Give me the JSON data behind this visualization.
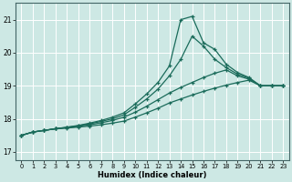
{
  "xlabel": "Humidex (Indice chaleur)",
  "background_color": "#cde8e4",
  "grid_color": "#ffffff",
  "line_color": "#1a6b5a",
  "xlim": [
    -0.5,
    23.5
  ],
  "ylim": [
    16.75,
    21.5
  ],
  "yticks": [
    17,
    18,
    19,
    20,
    21
  ],
  "xticks": [
    0,
    1,
    2,
    3,
    4,
    5,
    6,
    7,
    8,
    9,
    10,
    11,
    12,
    13,
    14,
    15,
    16,
    17,
    18,
    19,
    20,
    21,
    22,
    23
  ],
  "lines": [
    {
      "x": [
        0,
        1,
        2,
        3,
        4,
        5,
        6,
        7,
        8,
        9,
        10,
        11,
        12,
        13,
        14,
        15,
        16,
        17,
        18,
        19,
        20,
        21,
        22,
        23
      ],
      "y": [
        17.5,
        17.6,
        17.65,
        17.7,
        17.72,
        17.75,
        17.78,
        17.82,
        17.87,
        17.93,
        18.05,
        18.18,
        18.32,
        18.48,
        18.6,
        18.72,
        18.83,
        18.93,
        19.02,
        19.1,
        19.17,
        19.0,
        19.0,
        19.0
      ]
    },
    {
      "x": [
        0,
        1,
        2,
        3,
        4,
        5,
        6,
        7,
        8,
        9,
        10,
        11,
        12,
        13,
        14,
        15,
        16,
        17,
        18,
        19,
        20,
        21,
        22,
        23
      ],
      "y": [
        17.5,
        17.6,
        17.65,
        17.7,
        17.73,
        17.77,
        17.82,
        17.88,
        17.95,
        18.05,
        18.2,
        18.38,
        18.58,
        18.78,
        18.95,
        19.1,
        19.25,
        19.38,
        19.48,
        19.3,
        19.2,
        19.0,
        19.0,
        19.0
      ]
    },
    {
      "x": [
        0,
        1,
        2,
        3,
        4,
        5,
        6,
        7,
        8,
        9,
        10,
        11,
        12,
        13,
        14,
        15,
        16,
        17,
        18,
        19,
        20,
        21,
        22,
        23
      ],
      "y": [
        17.5,
        17.6,
        17.65,
        17.7,
        17.74,
        17.79,
        17.85,
        17.92,
        18.0,
        18.12,
        18.35,
        18.6,
        18.9,
        19.3,
        19.8,
        20.5,
        20.2,
        19.8,
        19.55,
        19.35,
        19.23,
        19.0,
        19.0,
        19.0
      ]
    },
    {
      "x": [
        0,
        1,
        2,
        3,
        4,
        5,
        6,
        7,
        8,
        9,
        10,
        11,
        12,
        13,
        14,
        15,
        16,
        17,
        18,
        19,
        20,
        21,
        22,
        23
      ],
      "y": [
        17.5,
        17.6,
        17.65,
        17.7,
        17.75,
        17.8,
        17.87,
        17.95,
        18.05,
        18.18,
        18.45,
        18.75,
        19.1,
        19.6,
        21.0,
        21.1,
        20.3,
        20.1,
        19.65,
        19.4,
        19.25,
        19.0,
        19.0,
        19.0
      ]
    }
  ]
}
